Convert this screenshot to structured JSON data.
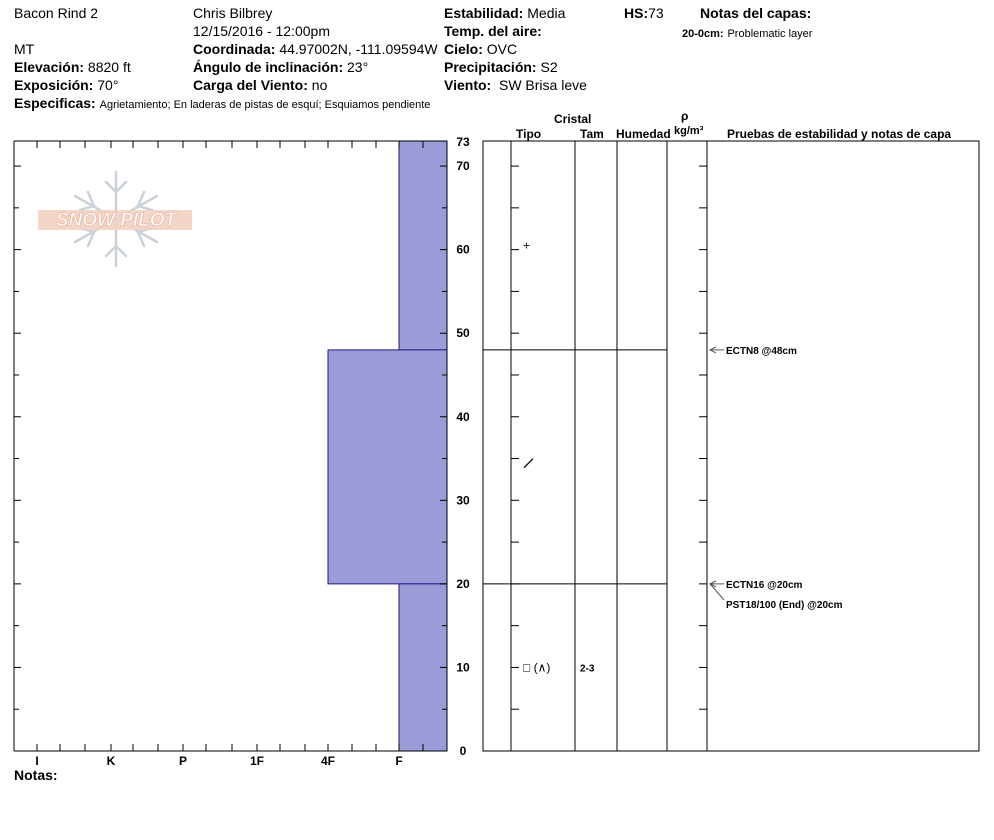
{
  "header": {
    "location": "Bacon Rind 2",
    "state": "MT",
    "observer": "Chris Bilbrey",
    "datetime": "12/15/2016 - 12:00pm",
    "elevation_label": "Elevación:",
    "elevation_value": "8820 ft",
    "aspect_label": "Exposición:",
    "aspect_value": "70°",
    "specifics_label": "Especificas:",
    "specifics_value": "Agrietamiento; En laderas de pistas de esquí; Esquiamos pendiente",
    "coord_label": "Coordinada:",
    "coord_value": "44.97002N, -111.09594W",
    "slope_label": "Ángulo de inclinación:",
    "slope_value": "23°",
    "wind_load_label": "Carga del Viento:",
    "wind_load_value": "no",
    "stability_label": "Estabilidad:",
    "stability_value": "Media",
    "air_temp_label": "Temp. del aire:",
    "air_temp_value": "",
    "sky_label": "Cielo:",
    "sky_value": "OVC",
    "precip_label": "Precipitación:",
    "precip_value": "S2",
    "wind_label": "Viento:",
    "wind_value": "SW Brisa leve",
    "hs_label": "HS:",
    "hs_value": "73",
    "layer_notes_label": "Notas del capas:",
    "layer_note_depth": "20-0cm:",
    "layer_note_text": "Problematic layer"
  },
  "columns": {
    "crystal": "Cristal",
    "type": "Tipo",
    "size": "Tam",
    "moisture": "Humedad",
    "rho": "ρ",
    "density_unit": "kg/m³",
    "stability_notes": "Pruebas de estabilidad y notas de capa"
  },
  "notes_label": "Notas:",
  "logo_text": "SNOW PILOT",
  "bar_color": "#9b9bd7",
  "chart_data": {
    "type": "bar",
    "orientation": "horizontal-profile",
    "x_categories": [
      "I",
      "K",
      "P",
      "1F",
      "4F",
      "F"
    ],
    "y_ticks": [
      "0",
      "10",
      "20",
      "30",
      "40",
      "50",
      "60",
      "70"
    ],
    "ylim": [
      0,
      73
    ],
    "hs_label": "73",
    "layers": [
      {
        "bottom": 48,
        "top": 73,
        "hardness": "F"
      },
      {
        "bottom": 20,
        "top": 48,
        "hardness": "4F"
      },
      {
        "bottom": 0,
        "top": 20,
        "hardness": "F"
      }
    ],
    "crystals": [
      {
        "depth": 60.5,
        "symbol": "+",
        "size": ""
      },
      {
        "depth": 34.5,
        "symbol": "/",
        "size": ""
      },
      {
        "depth": 10,
        "symbol": "□ (∧)",
        "size": "2-3"
      }
    ],
    "tests": [
      {
        "depth": 48,
        "label": "ECTN8 @48cm"
      },
      {
        "depth": 20,
        "label": "ECTN16 @20cm"
      },
      {
        "depth": 20,
        "label": "PST18/100 (End) @20cm"
      }
    ]
  }
}
